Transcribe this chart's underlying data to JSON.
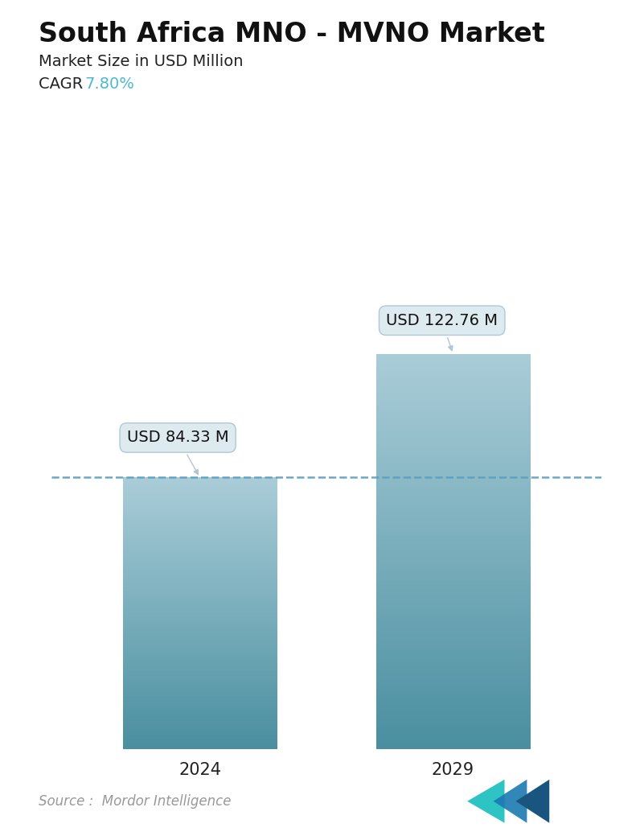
{
  "title": "South Africa MNO - MVNO Market",
  "subtitle": "Market Size in USD Million",
  "cagr_label": "CAGR  ",
  "cagr_value": "7.80%",
  "cagr_color": "#4db8d4",
  "categories": [
    "2024",
    "2029"
  ],
  "values": [
    84.33,
    122.76
  ],
  "bar_labels": [
    "USD 84.33 M",
    "USD 122.76 M"
  ],
  "bar_top_color": "#aacdd8",
  "bar_bottom_color": "#4a8fa0",
  "dashed_line_color": "#5b9fc0",
  "dashed_line_value": 84.33,
  "source_text": "Source :  Mordor Intelligence",
  "source_color": "#999999",
  "background_color": "#ffffff",
  "ylim": [
    0,
    150
  ],
  "bar_width": 0.28,
  "title_fontsize": 24,
  "subtitle_fontsize": 14,
  "cagr_fontsize": 14,
  "tick_fontsize": 15,
  "label_fontsize": 14,
  "source_fontsize": 12
}
